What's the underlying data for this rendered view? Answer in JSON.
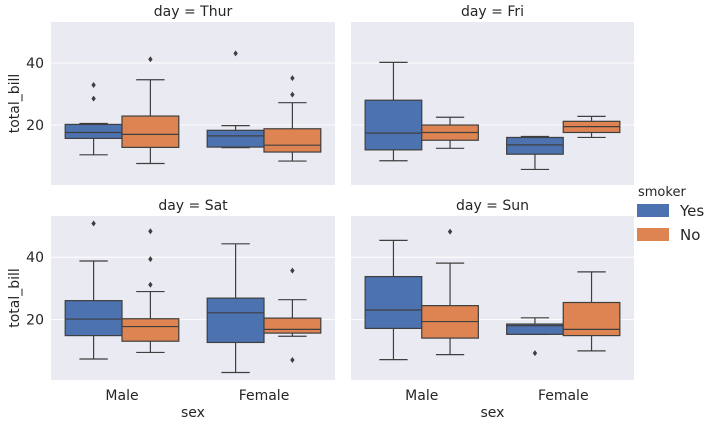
{
  "chart_data": [
    {
      "type": "box",
      "title": "day = Thur",
      "xlabel": "",
      "ylabel": "total_bill",
      "categories": [
        "Male",
        "Female"
      ],
      "ylim": [
        0.68,
        53.2
      ],
      "yticks": [
        20,
        40
      ],
      "grid": true,
      "boxes": [
        {
          "sex": "Male",
          "smoker": "Yes",
          "whislo": 10.4,
          "q1": 15.7,
          "med": 17.6,
          "q3": 20.2,
          "whishi": 20.5,
          "fliers": [
            28.5,
            32.9
          ]
        },
        {
          "sex": "Male",
          "smoker": "No",
          "whislo": 7.6,
          "q1": 12.8,
          "med": 17.0,
          "q3": 22.9,
          "whishi": 34.6,
          "fliers": [
            41.2
          ]
        },
        {
          "sex": "Female",
          "smoker": "Yes",
          "whislo": 12.7,
          "q1": 12.9,
          "med": 16.5,
          "q3": 18.3,
          "whishi": 19.8,
          "fliers": [
            43.1
          ]
        },
        {
          "sex": "Female",
          "smoker": "No",
          "whislo": 8.4,
          "q1": 11.3,
          "med": 13.5,
          "q3": 18.8,
          "whishi": 27.2,
          "fliers": [
            29.8,
            35.1
          ]
        }
      ]
    },
    {
      "type": "box",
      "title": "day = Fri",
      "xlabel": "",
      "ylabel": "",
      "categories": [
        "Male",
        "Female"
      ],
      "ylim": [
        0.68,
        53.2
      ],
      "yticks": [
        20,
        40
      ],
      "grid": true,
      "boxes": [
        {
          "sex": "Male",
          "smoker": "Yes",
          "whislo": 8.5,
          "q1": 12.0,
          "med": 17.4,
          "q3": 28.0,
          "whishi": 40.2,
          "fliers": []
        },
        {
          "sex": "Male",
          "smoker": "No",
          "whislo": 12.5,
          "q1": 15.1,
          "med": 17.6,
          "q3": 20.0,
          "whishi": 22.5,
          "fliers": []
        },
        {
          "sex": "Female",
          "smoker": "Yes",
          "whislo": 5.7,
          "q1": 10.6,
          "med": 13.6,
          "q3": 16.0,
          "whishi": 16.3,
          "fliers": []
        },
        {
          "sex": "Female",
          "smoker": "No",
          "whislo": 16.0,
          "q1": 17.6,
          "med": 19.5,
          "q3": 21.2,
          "whishi": 22.8,
          "fliers": []
        }
      ]
    },
    {
      "type": "box",
      "title": "day = Sat",
      "xlabel": "sex",
      "ylabel": "total_bill",
      "categories": [
        "Male",
        "Female"
      ],
      "ylim": [
        0.68,
        53.2
      ],
      "yticks": [
        20,
        40
      ],
      "grid": true,
      "boxes": [
        {
          "sex": "Male",
          "smoker": "Yes",
          "whislo": 7.4,
          "q1": 14.9,
          "med": 20.2,
          "q3": 26.1,
          "whishi": 38.8,
          "fliers": [
            50.8
          ]
        },
        {
          "sex": "Male",
          "smoker": "No",
          "whislo": 9.5,
          "q1": 13.1,
          "med": 17.8,
          "q3": 20.3,
          "whishi": 29.0,
          "fliers": [
            31.2,
            39.4,
            48.3
          ]
        },
        {
          "sex": "Female",
          "smoker": "Yes",
          "whislo": 3.07,
          "q1": 12.7,
          "med": 22.2,
          "q3": 26.9,
          "whishi": 44.3,
          "fliers": []
        },
        {
          "sex": "Female",
          "smoker": "No",
          "whislo": 14.7,
          "q1": 15.7,
          "med": 16.9,
          "q3": 20.5,
          "whishi": 26.4,
          "fliers": [
            7.1,
            35.7
          ]
        }
      ]
    },
    {
      "type": "box",
      "title": "day = Sun",
      "xlabel": "sex",
      "ylabel": "",
      "categories": [
        "Male",
        "Female"
      ],
      "ylim": [
        0.68,
        53.2
      ],
      "yticks": [
        20,
        40
      ],
      "grid": true,
      "boxes": [
        {
          "sex": "Male",
          "smoker": "Yes",
          "whislo": 7.2,
          "q1": 17.2,
          "med": 23.1,
          "q3": 33.8,
          "whishi": 45.4,
          "fliers": []
        },
        {
          "sex": "Male",
          "smoker": "No",
          "whislo": 8.8,
          "q1": 14.1,
          "med": 19.4,
          "q3": 24.5,
          "whishi": 38.1,
          "fliers": [
            48.2
          ]
        },
        {
          "sex": "Female",
          "smoker": "Yes",
          "whislo": 15.3,
          "q1": 15.3,
          "med": 18.1,
          "q3": 18.6,
          "whishi": 20.6,
          "fliers": [
            9.3
          ]
        },
        {
          "sex": "Female",
          "smoker": "No",
          "whislo": 10.0,
          "q1": 14.9,
          "med": 16.9,
          "q3": 25.5,
          "whishi": 35.3,
          "fliers": []
        }
      ]
    }
  ],
  "legend": {
    "title": "smoker",
    "placement": "right",
    "items": [
      {
        "label": "Yes",
        "color": "#4c72b0"
      },
      {
        "label": "No",
        "color": "#dd8452"
      }
    ]
  },
  "colors": {
    "Yes": "#4c72b0",
    "No": "#dd8452",
    "background": "#eaeaf2",
    "edge": "#3f3f3f"
  }
}
